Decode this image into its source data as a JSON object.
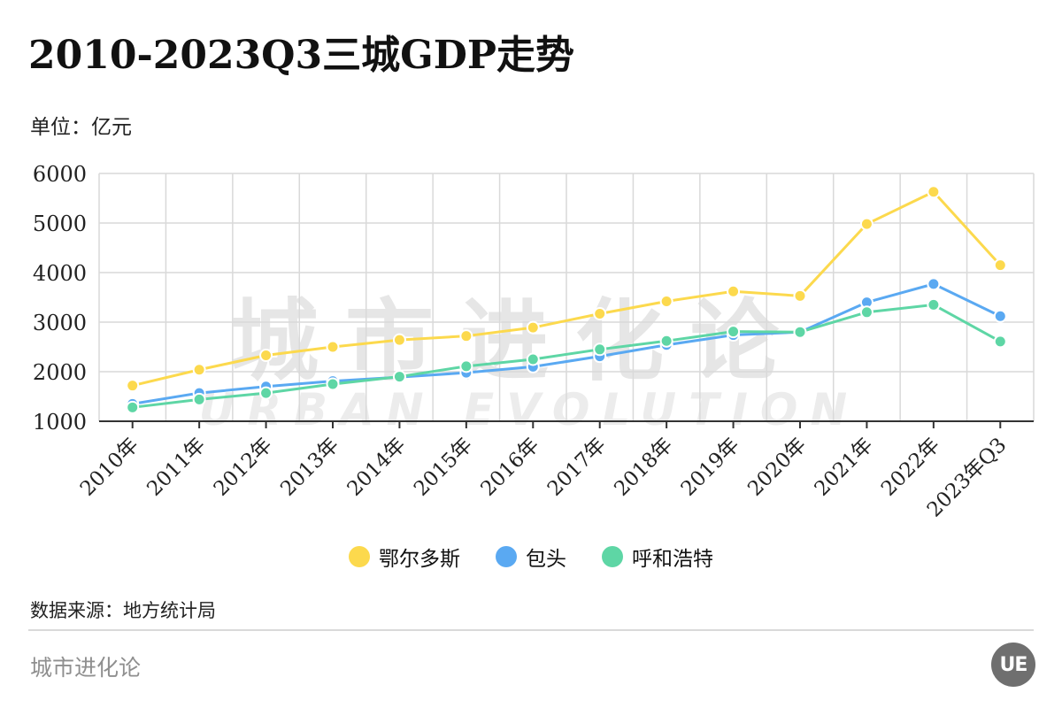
{
  "title": "2010-2023Q3三城GDP走势",
  "unit": "单位：亿元",
  "source": "数据来源：地方统计局",
  "brand": "城市进化论",
  "logo_text": "UE",
  "watermark": {
    "cn": "城市进化论",
    "en": "URBAN EVOLUTION"
  },
  "chart_data": {
    "type": "line",
    "title": "2010-2023Q3三城GDP走势",
    "ylabel": "单位：亿元",
    "xlabel": "",
    "ylim": [
      1000,
      6000
    ],
    "yticks": [
      1000,
      2000,
      3000,
      4000,
      5000,
      6000
    ],
    "grid": true,
    "legend_position": "bottom",
    "categories": [
      "2010年",
      "2011年",
      "2012年",
      "2013年",
      "2014年",
      "2015年",
      "2016年",
      "2017年",
      "2018年",
      "2019年",
      "2020年",
      "2021年",
      "2022年",
      "2023年Q3"
    ],
    "series": [
      {
        "name": "鄂尔多斯",
        "color": "#fcd94d",
        "values": [
          1720,
          2040,
          2330,
          2500,
          2640,
          2720,
          2890,
          3170,
          3420,
          3620,
          3530,
          4980,
          5630,
          4150
        ]
      },
      {
        "name": "包头",
        "color": "#5aa9f2",
        "values": [
          1350,
          1570,
          1700,
          1810,
          1890,
          1980,
          2100,
          2310,
          2540,
          2740,
          2800,
          3400,
          3770,
          3120
        ]
      },
      {
        "name": "呼和浩特",
        "color": "#5ed6a5",
        "values": [
          1280,
          1440,
          1570,
          1750,
          1900,
          2110,
          2250,
          2450,
          2620,
          2810,
          2800,
          3200,
          3350,
          2610
        ]
      }
    ]
  }
}
